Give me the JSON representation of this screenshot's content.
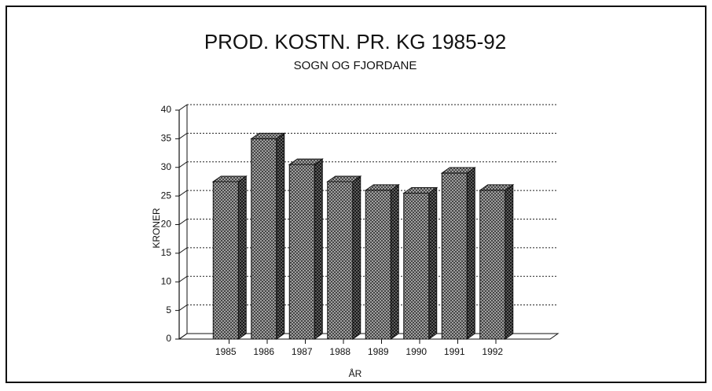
{
  "chart_data": {
    "type": "bar3d",
    "title": "PROD. KOSTN. PR. KG 1985-92",
    "subtitle": "SOGN OG FJORDANE",
    "categories": [
      "1985",
      "1986",
      "1987",
      "1988",
      "1989",
      "1990",
      "1991",
      "1992"
    ],
    "values": [
      27.5,
      35,
      30.5,
      27.5,
      26,
      25.5,
      29,
      26
    ],
    "color": "#555555",
    "xlabel": "ÅR",
    "ylabel": "KRONER",
    "ylim": [
      0,
      40
    ],
    "yticks": [
      0,
      5,
      10,
      15,
      20,
      25,
      30,
      35,
      40
    ],
    "grid": true
  }
}
